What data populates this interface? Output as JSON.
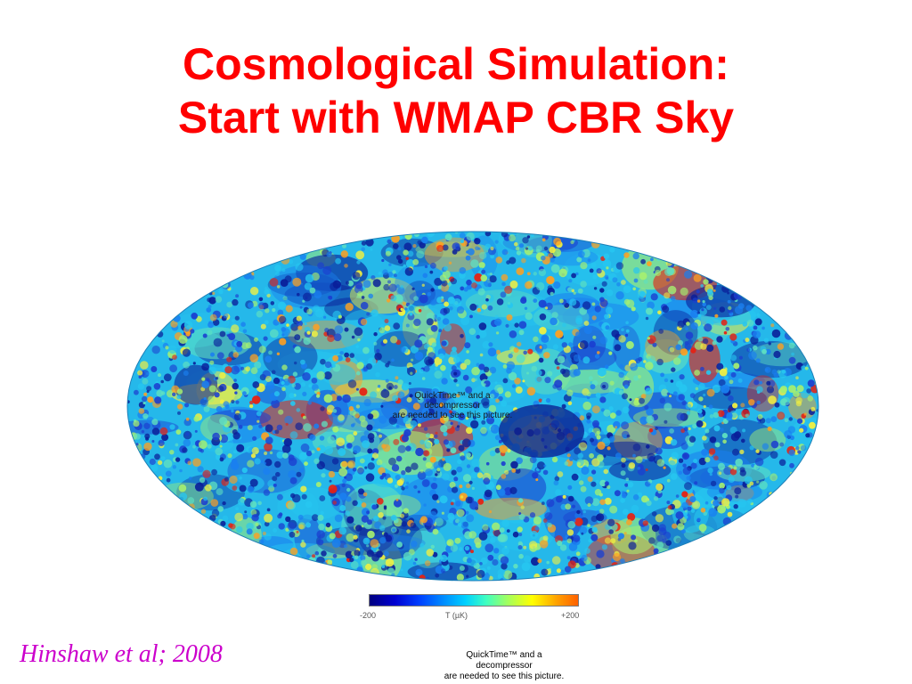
{
  "slide": {
    "title_line1": "Cosmological Simulation:",
    "title_line2": "Start with WMAP CBR Sky",
    "citation": "Hinshaw et al; 2008",
    "colorbar": {
      "min_label": "-200",
      "unit_label": "T (µK)",
      "max_label": "+200"
    },
    "quicktime_center": [
      "QuickTime™ and a",
      "decompressor",
      "are needed to see this picture."
    ],
    "quicktime_bottom": [
      "QuickTime™ and a",
      "decompressor",
      "are needed to see this picture."
    ]
  },
  "colors": {
    "title": "#ff0000",
    "citation": "#cc00cc",
    "background": "#ffffff"
  },
  "icons": {
    "sky_map": "wmap-all-sky-mollweide-map"
  }
}
